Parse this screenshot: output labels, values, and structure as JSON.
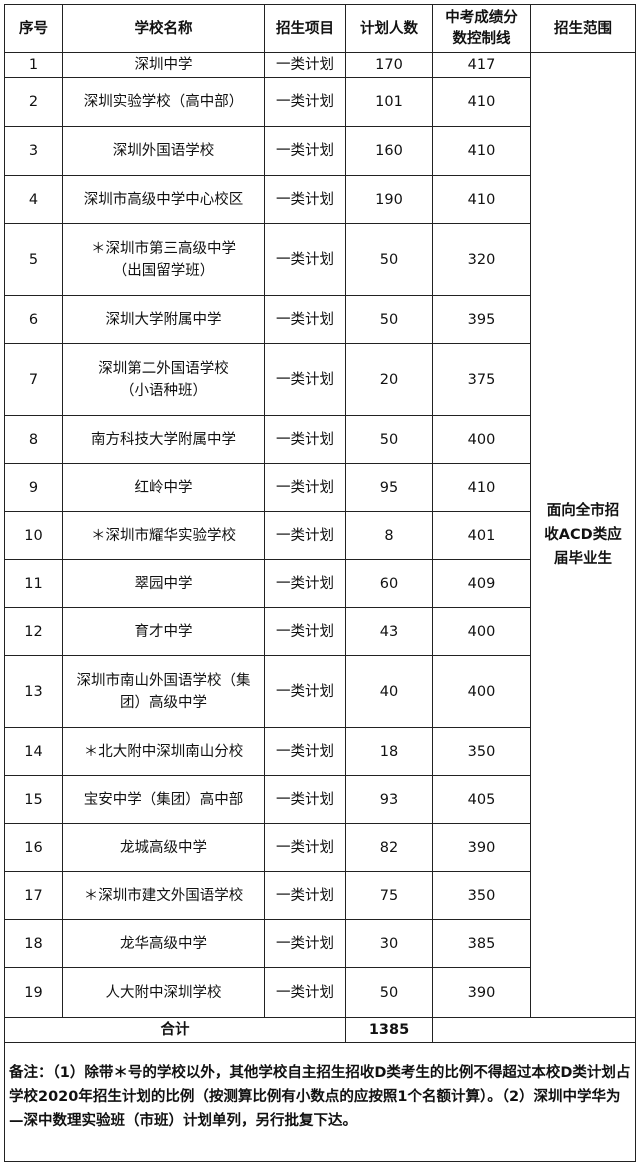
{
  "headers": [
    "序号",
    "学校名称",
    "招生项目",
    "计划人数",
    "中考成绩分\n数控制线",
    "招生范围"
  ],
  "scope": "面向全市招\n收ACD类应\n届毕业生",
  "rows": [
    {
      "no": "1",
      "name": "深圳中学",
      "project": "一类计划",
      "count": "170",
      "score": "417"
    },
    {
      "no": "2",
      "name": "深圳实验学校（高中部）",
      "project": "一类计划",
      "count": "101",
      "score": "410"
    },
    {
      "no": "3",
      "name": "深圳外国语学校",
      "project": "一类计划",
      "count": "160",
      "score": "410"
    },
    {
      "no": "4",
      "name": "深圳市高级中学中心校区",
      "project": "一类计划",
      "count": "190",
      "score": "410"
    },
    {
      "no": "5",
      "name": "＊深圳市第三高级中学\n（出国留学班）",
      "project": "一类计划",
      "count": "50",
      "score": "320"
    },
    {
      "no": "6",
      "name": "深圳大学附属中学",
      "project": "一类计划",
      "count": "50",
      "score": "395"
    },
    {
      "no": "7",
      "name": "深圳第二外国语学校\n（小语种班）",
      "project": "一类计划",
      "count": "20",
      "score": "375"
    },
    {
      "no": "8",
      "name": "南方科技大学附属中学",
      "project": "一类计划",
      "count": "50",
      "score": "400"
    },
    {
      "no": "9",
      "name": "红岭中学",
      "project": "一类计划",
      "count": "95",
      "score": "410"
    },
    {
      "no": "10",
      "name": "＊深圳市耀华实验学校",
      "project": "一类计划",
      "count": "8",
      "score": "401"
    },
    {
      "no": "11",
      "name": "翠园中学",
      "project": "一类计划",
      "count": "60",
      "score": "409"
    },
    {
      "no": "12",
      "name": "育才中学",
      "project": "一类计划",
      "count": "43",
      "score": "400"
    },
    {
      "no": "13",
      "name": "深圳市南山外国语学校（集\n团）高级中学",
      "project": "一类计划",
      "count": "40",
      "score": "400"
    },
    {
      "no": "14",
      "name": "＊北大附中深圳南山分校",
      "project": "一类计划",
      "count": "18",
      "score": "350"
    },
    {
      "no": "15",
      "name": "宝安中学（集团）高中部",
      "project": "一类计划",
      "count": "93",
      "score": "405"
    },
    {
      "no": "16",
      "name": "龙城高级中学",
      "project": "一类计划",
      "count": "82",
      "score": "390"
    },
    {
      "no": "17",
      "name": "＊深圳市建文外国语学校",
      "project": "一类计划",
      "count": "75",
      "score": "350"
    },
    {
      "no": "18",
      "name": "龙华高级中学",
      "project": "一类计划",
      "count": "30",
      "score": "385"
    },
    {
      "no": "19",
      "name": "人大附中深圳学校",
      "project": "一类计划",
      "count": "50",
      "score": "390"
    }
  ],
  "total": {
    "label": "合计",
    "count": "1385"
  },
  "note": "备注：（1）除带＊号的学校以外，其他学校自主招生招收D类考生的比例不得超过本校D类计划占学校2020年招生计划的比例（按测算比例有小数点的应按照1个名额计算）。（2）深圳中学华为—深中数理实验班（市班）计划单列，另行批复下达。"
}
